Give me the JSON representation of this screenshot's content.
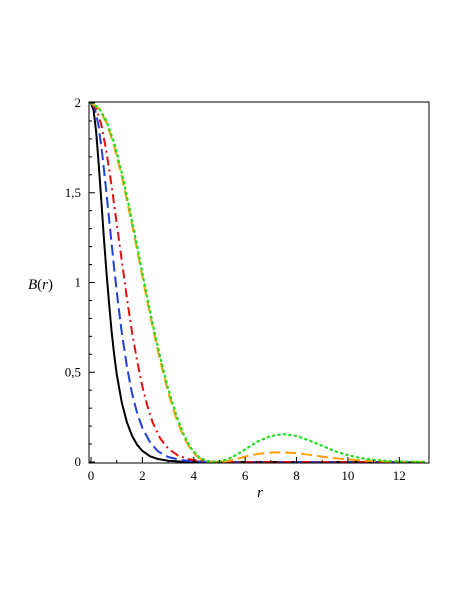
{
  "chart_data": {
    "type": "line",
    "xlabel": "r",
    "ylabel": {
      "func": "B",
      "open": "(",
      "arg": "r",
      "close": ")"
    },
    "xlim": [
      0,
      13
    ],
    "ylim": [
      0,
      2
    ],
    "x_ticks": [
      {
        "value": 0,
        "label": "0"
      },
      {
        "value": 2,
        "label": "2"
      },
      {
        "value": 4,
        "label": "4"
      },
      {
        "value": 6,
        "label": "6"
      },
      {
        "value": 8,
        "label": "8"
      },
      {
        "value": 10,
        "label": "10"
      },
      {
        "value": 12,
        "label": "12"
      }
    ],
    "y_ticks": [
      {
        "value": 0,
        "label": "0"
      },
      {
        "value": 0.5,
        "label": "0,5"
      },
      {
        "value": 1,
        "label": "1"
      },
      {
        "value": 1.5,
        "label": "1,5"
      },
      {
        "value": 2,
        "label": "2"
      }
    ],
    "grid": false,
    "series": [
      {
        "color": "#000000",
        "style": "solid",
        "x": [
          0,
          0.1,
          0.2,
          0.3,
          0.4,
          0.5,
          0.6,
          0.7,
          0.8,
          0.9,
          1.0,
          1.2,
          1.4,
          1.6,
          1.8,
          2.0,
          2.3,
          2.6,
          3.0,
          3.5,
          4.0,
          5.0,
          6.0,
          8.0,
          10.0,
          13.0
        ],
        "y": [
          2.0,
          1.96,
          1.84,
          1.66,
          1.46,
          1.25,
          1.06,
          0.89,
          0.73,
          0.6,
          0.49,
          0.33,
          0.22,
          0.145,
          0.095,
          0.062,
          0.032,
          0.017,
          0.007,
          0.002,
          0.0006,
          0.0001,
          0,
          0,
          0,
          0
        ]
      },
      {
        "color": "#1f3fe0",
        "style": "longdash",
        "x": [
          0,
          0.15,
          0.3,
          0.45,
          0.6,
          0.75,
          0.9,
          1.05,
          1.2,
          1.4,
          1.6,
          1.8,
          2.0,
          2.3,
          2.6,
          3.0,
          3.5,
          4.0,
          4.5,
          5.0,
          6.0,
          8.0,
          10.0,
          13.0
        ],
        "y": [
          2.0,
          1.97,
          1.87,
          1.7,
          1.5,
          1.29,
          1.08,
          0.89,
          0.72,
          0.53,
          0.38,
          0.27,
          0.19,
          0.11,
          0.06,
          0.028,
          0.011,
          0.004,
          0.001,
          0.0003,
          0,
          0,
          0,
          0
        ]
      },
      {
        "color": "#e01010",
        "style": "dashdot",
        "x": [
          0,
          0.2,
          0.4,
          0.6,
          0.8,
          1.0,
          1.2,
          1.4,
          1.6,
          1.8,
          2.0,
          2.2,
          2.4,
          2.7,
          3.0,
          3.4,
          3.8,
          4.2,
          4.6,
          5.0,
          6.0,
          8.0,
          10.0,
          13.0
        ],
        "y": [
          2.0,
          1.97,
          1.88,
          1.73,
          1.54,
          1.33,
          1.12,
          0.91,
          0.72,
          0.56,
          0.42,
          0.31,
          0.22,
          0.13,
          0.075,
          0.035,
          0.016,
          0.007,
          0.003,
          0.001,
          0,
          0,
          0,
          0
        ]
      },
      {
        "color": "#ffa000",
        "style": "longdash",
        "x": [
          0,
          0.3,
          0.6,
          0.9,
          1.2,
          1.5,
          1.8,
          2.1,
          2.4,
          2.7,
          3.0,
          3.3,
          3.6,
          3.9,
          4.2,
          4.5,
          4.8,
          5.0,
          5.3,
          5.6,
          6.0,
          6.5,
          7.0,
          7.5,
          8.0,
          8.5,
          9.0,
          9.5,
          10.0,
          10.5,
          11.0,
          11.5,
          12.0,
          12.5,
          13.0
        ],
        "y": [
          2.0,
          1.97,
          1.89,
          1.76,
          1.59,
          1.39,
          1.18,
          0.96,
          0.75,
          0.56,
          0.39,
          0.25,
          0.14,
          0.065,
          0.022,
          0.004,
          0.0005,
          0,
          0.004,
          0.014,
          0.03,
          0.045,
          0.053,
          0.054,
          0.049,
          0.04,
          0.03,
          0.021,
          0.014,
          0.009,
          0.005,
          0.003,
          0.0015,
          0.0008,
          0.0004
        ]
      },
      {
        "color": "#22dd22",
        "style": "dotted",
        "x": [
          0,
          0.3,
          0.6,
          0.9,
          1.2,
          1.5,
          1.8,
          2.1,
          2.4,
          2.7,
          3.0,
          3.3,
          3.6,
          3.9,
          4.2,
          4.5,
          4.8,
          5.0,
          5.3,
          5.6,
          6.0,
          6.5,
          7.0,
          7.5,
          8.0,
          8.5,
          9.0,
          9.5,
          10.0,
          10.5,
          11.0,
          11.5,
          12.0,
          12.5,
          13.0
        ],
        "y": [
          2.0,
          1.975,
          1.9,
          1.78,
          1.61,
          1.41,
          1.2,
          0.98,
          0.77,
          0.58,
          0.41,
          0.27,
          0.155,
          0.075,
          0.027,
          0.006,
          0.001,
          0.003,
          0.015,
          0.035,
          0.07,
          0.115,
          0.145,
          0.155,
          0.145,
          0.12,
          0.09,
          0.06,
          0.038,
          0.022,
          0.012,
          0.006,
          0.003,
          0.0015,
          0.0007
        ]
      }
    ]
  }
}
